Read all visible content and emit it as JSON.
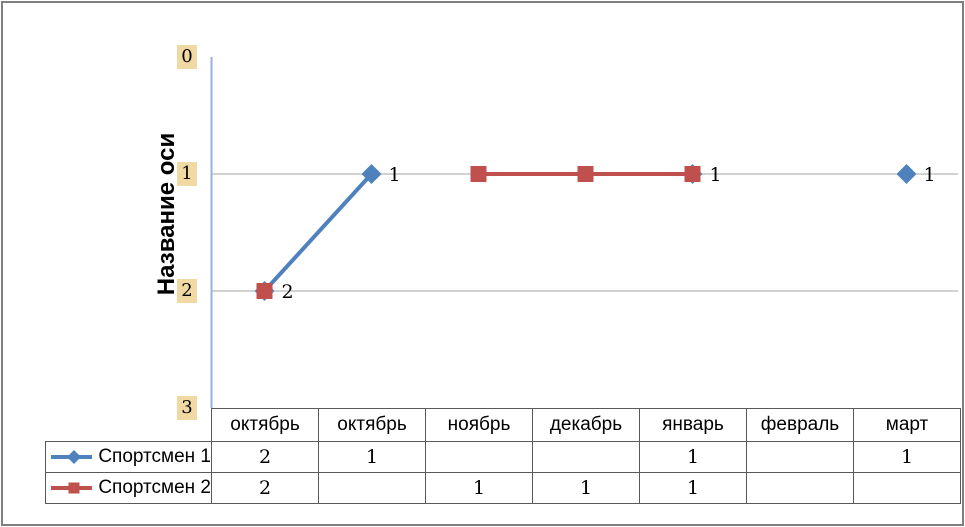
{
  "window": {
    "background": "#FFFFFF",
    "border_color": "#7F7F7F"
  },
  "chart_data": {
    "type": "line",
    "categories": [
      "октябрь",
      "октябрь",
      "ноябрь",
      "декабрь",
      "январь",
      "февраль",
      "март"
    ],
    "series": [
      {
        "name": "Спортсмен 1",
        "marker": "diamond",
        "color": "#4F81BD",
        "values": [
          2,
          1,
          null,
          null,
          1,
          null,
          1
        ],
        "data_labels": true
      },
      {
        "name": "Спортсмен 2",
        "marker": "square",
        "color": "#C0504D",
        "values": [
          2,
          null,
          1,
          1,
          1,
          null,
          null
        ],
        "data_labels": false
      }
    ],
    "y_axis": {
      "title": "Название оси",
      "min": 0,
      "max": 3,
      "reversed": true,
      "ticks": [
        "0",
        "1",
        "2",
        "3"
      ],
      "gridline_values": [
        1,
        2
      ],
      "tick_highlight_color": "#F0D9A2",
      "axis_line_color": "#95B3D7"
    },
    "gridline_color": "#A6A6A6",
    "legend_position": "table-left",
    "table_border_color": "#595959",
    "data_label_values_series1": [
      "2",
      "1",
      "1",
      "1"
    ]
  }
}
